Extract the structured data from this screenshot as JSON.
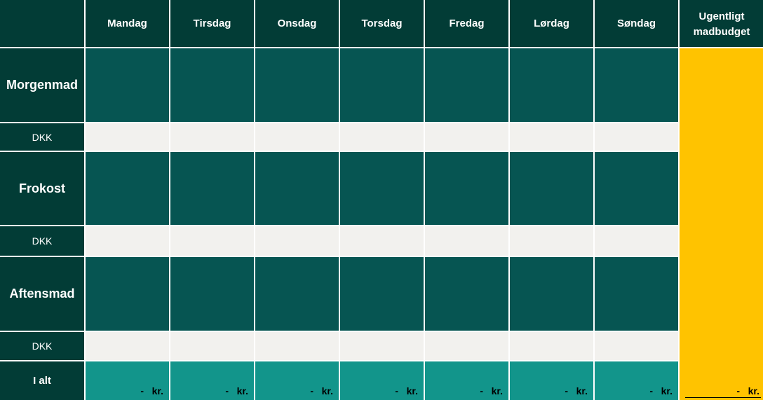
{
  "header": {
    "days": [
      "Mandag",
      "Tirsdag",
      "Onsdag",
      "Torsdag",
      "Fredag",
      "Lørdag",
      "Søndag"
    ],
    "budget_line1": "Ugentligt",
    "budget_line2": "madbudget"
  },
  "rows": {
    "breakfast_label": "Morgenmad",
    "lunch_label": "Frokost",
    "dinner_label": "Aftensmad",
    "dkk_label": "DKK",
    "total_label": "I alt"
  },
  "totals": {
    "daily": [
      "-   kr.",
      "-   kr.",
      "-   kr.",
      "-   kr.",
      "-   kr.",
      "-   kr.",
      "-   kr."
    ],
    "weekly_budget": "-   kr."
  },
  "colors": {
    "header_bg": "#023c36",
    "meal_cell": "#065552",
    "dkk_cell": "#f2f1ee",
    "total_cell": "#12958b",
    "budget_col": "#ffc300"
  }
}
